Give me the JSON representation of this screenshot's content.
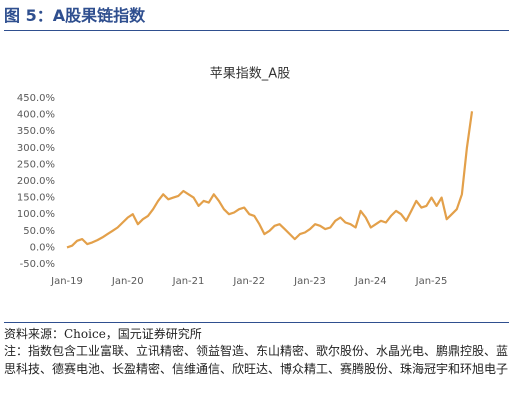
{
  "header": {
    "title": "图 5：A股果链指数"
  },
  "chart_data": {
    "type": "line",
    "title": "苹果指数_A股",
    "x": [
      "2019-01",
      "2019-02",
      "2019-03",
      "2019-04",
      "2019-05",
      "2019-06",
      "2019-07",
      "2019-08",
      "2019-09",
      "2019-10",
      "2019-11",
      "2019-12",
      "2020-01",
      "2020-02",
      "2020-03",
      "2020-04",
      "2020-05",
      "2020-06",
      "2020-07",
      "2020-08",
      "2020-09",
      "2020-10",
      "2020-11",
      "2020-12",
      "2021-01",
      "2021-02",
      "2021-03",
      "2021-04",
      "2021-05",
      "2021-06",
      "2021-07",
      "2021-08",
      "2021-09",
      "2021-10",
      "2021-11",
      "2021-12",
      "2022-01",
      "2022-02",
      "2022-03",
      "2022-04",
      "2022-05",
      "2022-06",
      "2022-07",
      "2022-08",
      "2022-09",
      "2022-10",
      "2022-11",
      "2022-12",
      "2023-01",
      "2023-02",
      "2023-03",
      "2023-04",
      "2023-05",
      "2023-06",
      "2023-07",
      "2023-08",
      "2023-09",
      "2023-10",
      "2023-11",
      "2023-12",
      "2024-01",
      "2024-02",
      "2024-03",
      "2024-04",
      "2024-05",
      "2024-06",
      "2024-07",
      "2024-08",
      "2024-09",
      "2024-10",
      "2024-11",
      "2024-12",
      "2025-01",
      "2025-02",
      "2025-03",
      "2025-04",
      "2025-05",
      "2025-06",
      "2025-07",
      "2025-08",
      "2025-09"
    ],
    "series": [
      {
        "color": "#e3a04a",
        "values": [
          0,
          5,
          20,
          25,
          10,
          15,
          22,
          30,
          40,
          50,
          60,
          75,
          90,
          100,
          70,
          85,
          95,
          115,
          140,
          160,
          145,
          150,
          155,
          170,
          160,
          150,
          125,
          140,
          135,
          160,
          140,
          115,
          100,
          105,
          115,
          120,
          100,
          95,
          70,
          40,
          50,
          65,
          70,
          55,
          40,
          25,
          40,
          45,
          55,
          70,
          65,
          55,
          60,
          80,
          90,
          75,
          70,
          60,
          110,
          90,
          60,
          70,
          80,
          75,
          95,
          110,
          100,
          80,
          110,
          140,
          120,
          125,
          150,
          125,
          150,
          85,
          100,
          115,
          160,
          300,
          410
        ]
      }
    ],
    "xlim": [
      "2019-01",
      "2025-09"
    ],
    "xticks": [
      {
        "value": "2019-01",
        "label": "Jan-19"
      },
      {
        "value": "2020-01",
        "label": "Jan-20"
      },
      {
        "value": "2021-01",
        "label": "Jan-21"
      },
      {
        "value": "2022-01",
        "label": "Jan-22"
      },
      {
        "value": "2023-01",
        "label": "Jan-23"
      },
      {
        "value": "2024-01",
        "label": "Jan-24"
      },
      {
        "value": "2025-01",
        "label": "Jan-25"
      }
    ],
    "ylim": [
      -50,
      450
    ],
    "yticks": [
      {
        "value": -50,
        "label": "-50.0%"
      },
      {
        "value": 0,
        "label": "0.0%"
      },
      {
        "value": 50,
        "label": "50.0%"
      },
      {
        "value": 100,
        "label": "100.0%"
      },
      {
        "value": 150,
        "label": "150.0%"
      },
      {
        "value": 200,
        "label": "200.0%"
      },
      {
        "value": 250,
        "label": "250.0%"
      },
      {
        "value": 300,
        "label": "300.0%"
      },
      {
        "value": 350,
        "label": "350.0%"
      },
      {
        "value": 400,
        "label": "400.0%"
      },
      {
        "value": 450,
        "label": "450.0%"
      }
    ]
  },
  "notes": {
    "source": "资料来源：Choice，国元证券研究所",
    "note": "注：指数包含工业富联、立讯精密、领益智造、东山精密、歌尔股份、水晶光电、鹏鼎控股、蓝思科技、德赛电池、长盈精密、信维通信、欣旺达、博众精工、赛腾股份、珠海冠宇和环旭电子"
  }
}
